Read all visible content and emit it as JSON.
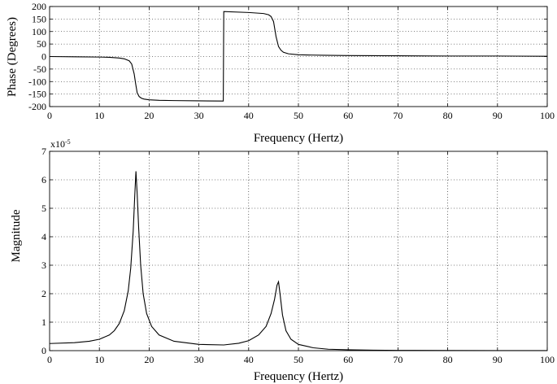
{
  "chart_data": [
    {
      "type": "line",
      "xlabel": "Frequency (Hertz)",
      "ylabel": "Phase (Degrees)",
      "xlim": [
        0,
        100
      ],
      "ylim": [
        -200,
        200
      ],
      "xticks": [
        0,
        10,
        20,
        30,
        40,
        50,
        60,
        70,
        80,
        90,
        100
      ],
      "yticks": [
        -200,
        -150,
        -100,
        -50,
        0,
        50,
        100,
        150,
        200
      ],
      "grid": true,
      "series": [
        {
          "x": [
            0,
            5,
            10,
            12,
            14,
            15,
            16,
            16.5,
            17,
            17.3,
            17.6,
            18,
            18.5,
            19,
            20,
            22,
            25,
            30,
            34.9,
            35.0,
            40,
            43,
            44,
            44.5,
            45,
            45.5,
            46,
            46.5,
            47,
            48,
            50,
            55,
            60,
            70,
            80,
            90,
            100
          ],
          "y": [
            0,
            -1,
            -2,
            -3,
            -6,
            -9,
            -17,
            -30,
            -70,
            -110,
            -145,
            -160,
            -167,
            -170,
            -173,
            -175,
            -176,
            -177,
            -178,
            180,
            176,
            172,
            167,
            160,
            140,
            80,
            40,
            25,
            17,
            11,
            7,
            5,
            4,
            3,
            2,
            2,
            1
          ]
        }
      ]
    },
    {
      "type": "line",
      "xlabel": "Frequency (Hertz)",
      "ylabel": "Magnitude",
      "y_multiplier": "x10",
      "y_exponent": "-5",
      "xlim": [
        0,
        100
      ],
      "ylim": [
        0,
        7
      ],
      "xticks": [
        0,
        10,
        20,
        30,
        40,
        50,
        60,
        70,
        80,
        90,
        100
      ],
      "yticks": [
        0,
        1,
        2,
        3,
        4,
        5,
        6,
        7
      ],
      "grid": true,
      "series": [
        {
          "x": [
            0,
            5,
            8,
            10,
            12,
            13,
            14,
            15,
            15.8,
            16.3,
            16.8,
            17.1,
            17.35,
            17.6,
            17.9,
            18.3,
            18.8,
            19.5,
            20.5,
            22,
            25,
            30,
            35,
            38,
            40,
            42,
            43.5,
            44.5,
            45.2,
            45.7,
            46.0,
            46.3,
            46.8,
            47.5,
            48.5,
            50,
            53,
            56,
            60,
            65,
            70,
            80,
            90,
            100
          ],
          "y": [
            0.25,
            0.28,
            0.33,
            0.4,
            0.55,
            0.7,
            0.95,
            1.4,
            2.1,
            2.9,
            4.2,
            5.4,
            6.3,
            5.5,
            4.3,
            3.0,
            2.0,
            1.3,
            0.85,
            0.55,
            0.33,
            0.22,
            0.2,
            0.26,
            0.35,
            0.55,
            0.85,
            1.3,
            1.8,
            2.3,
            2.42,
            2.0,
            1.25,
            0.7,
            0.4,
            0.22,
            0.1,
            0.05,
            0.03,
            0.015,
            0.01,
            0.005,
            0.003,
            0.002
          ]
        }
      ]
    }
  ]
}
